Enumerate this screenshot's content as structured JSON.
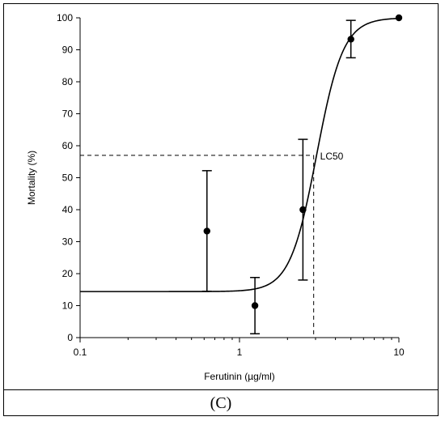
{
  "chart_data": {
    "type": "scatter",
    "title": "",
    "xlabel": "Ferutinin (µg/ml)",
    "ylabel": "Mortality (%)",
    "x_scale": "log",
    "xlim": [
      0.1,
      10
    ],
    "ylim": [
      0,
      100
    ],
    "x_ticks": [
      0.1,
      1,
      10
    ],
    "x_tick_labels": [
      "0.1",
      "1",
      "10"
    ],
    "y_ticks": [
      0,
      10,
      20,
      30,
      40,
      50,
      60,
      70,
      80,
      90,
      100
    ],
    "y_tick_labels": [
      "0",
      "10",
      "20",
      "30",
      "40",
      "50",
      "60",
      "70",
      "80",
      "90",
      "100"
    ],
    "grid": false,
    "points": [
      {
        "x": 0.625,
        "y": 33.3,
        "err_low": 14.5,
        "err_high": 52.2
      },
      {
        "x": 1.25,
        "y": 10.0,
        "err_low": 1.2,
        "err_high": 18.8
      },
      {
        "x": 2.5,
        "y": 40.0,
        "err_low": 18.0,
        "err_high": 62.0
      },
      {
        "x": 5.0,
        "y": 93.3,
        "err_low": 87.5,
        "err_high": 99.2
      },
      {
        "x": 10.0,
        "y": 100.0,
        "err_low": 100.0,
        "err_high": 100.0
      }
    ],
    "fit_curve": {
      "model": "logistic",
      "bottom": 14.4,
      "top": 100,
      "x50": 3.05,
      "hill": 5.2
    },
    "annotation": {
      "label": "LC50",
      "x": 2.92,
      "y": 57
    }
  },
  "panel": {
    "label": "(C)"
  }
}
